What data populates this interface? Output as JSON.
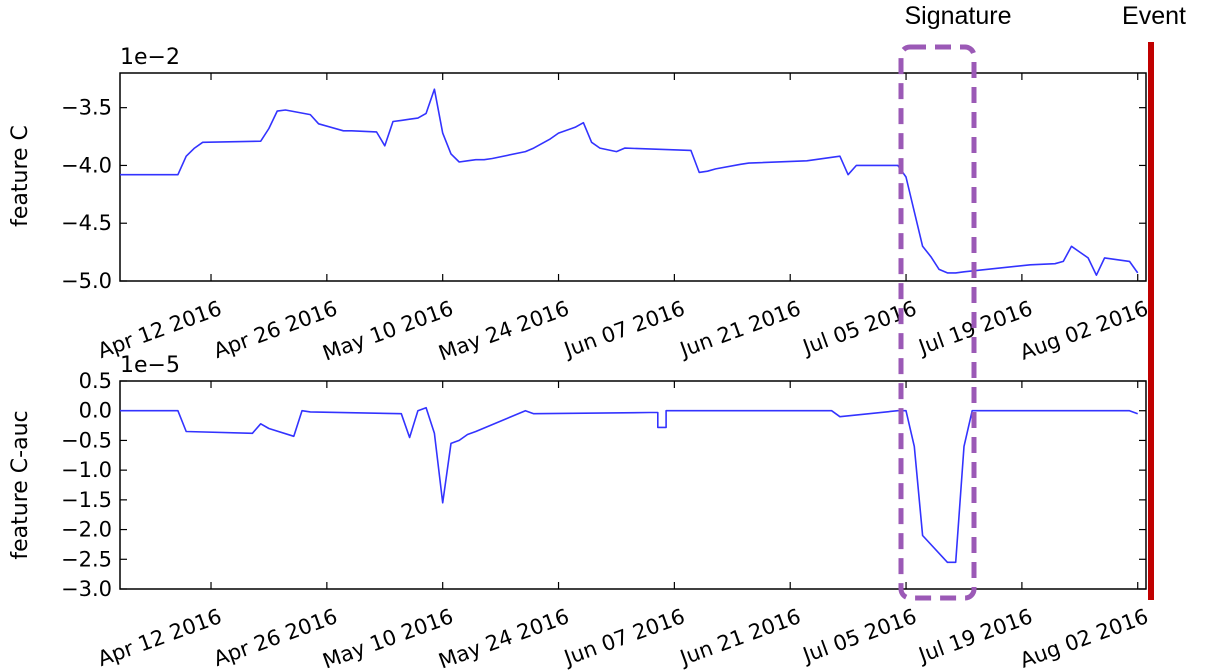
{
  "chart_data": [
    {
      "type": "line",
      "ylabel": "feature C",
      "offset_label": "1e−2",
      "x_ticks": [
        "Apr 12 2016",
        "Apr 26 2016",
        "May 10 2016",
        "May 24 2016",
        "Jun 07 2016",
        "Jun 21 2016",
        "Jul 05 2016",
        "Jul 19 2016",
        "Aug 02 2016"
      ],
      "x_range": [
        "2016-04-01",
        "2016-08-03"
      ],
      "ylim": [
        -5.0,
        -3.2
      ],
      "y_ticks": [
        -3.5,
        -4.0,
        -4.5,
        -5.0
      ],
      "y_tick_labels": [
        "−3.5",
        "−4.0",
        "−4.5",
        "−5.0"
      ],
      "line_color": "#3333ff",
      "series": [
        {
          "x": [
            "2016-04-01",
            "2016-04-08",
            "2016-04-09",
            "2016-04-10",
            "2016-04-11",
            "2016-04-18",
            "2016-04-19",
            "2016-04-20",
            "2016-04-21",
            "2016-04-24",
            "2016-04-25",
            "2016-04-28",
            "2016-04-29",
            "2016-05-02",
            "2016-05-03",
            "2016-05-04",
            "2016-05-05",
            "2016-05-06",
            "2016-05-07",
            "2016-05-08",
            "2016-05-09",
            "2016-05-10",
            "2016-05-11",
            "2016-05-12",
            "2016-05-13",
            "2016-05-14",
            "2016-05-15",
            "2016-05-16",
            "2016-05-20",
            "2016-05-21",
            "2016-05-23",
            "2016-05-24",
            "2016-05-26",
            "2016-05-27",
            "2016-05-28",
            "2016-05-29",
            "2016-05-31",
            "2016-06-01",
            "2016-06-09",
            "2016-06-10",
            "2016-06-11",
            "2016-06-12",
            "2016-06-15",
            "2016-06-16",
            "2016-06-23",
            "2016-06-27",
            "2016-06-28",
            "2016-06-29",
            "2016-07-04",
            "2016-07-05",
            "2016-07-06",
            "2016-07-07",
            "2016-07-08",
            "2016-07-09",
            "2016-07-10",
            "2016-07-11",
            "2016-07-12",
            "2016-07-20",
            "2016-07-23",
            "2016-07-24",
            "2016-07-25",
            "2016-07-26",
            "2016-07-27",
            "2016-07-28",
            "2016-07-29",
            "2016-08-01",
            "2016-08-02"
          ],
          "values": [
            -4.08,
            -4.08,
            -3.92,
            -3.85,
            -3.8,
            -3.79,
            -3.68,
            -3.53,
            -3.52,
            -3.56,
            -3.64,
            -3.7,
            -3.7,
            -3.71,
            -3.83,
            -3.62,
            -3.61,
            -3.6,
            -3.59,
            -3.55,
            -3.34,
            -3.72,
            -3.9,
            -3.97,
            -3.96,
            -3.95,
            -3.95,
            -3.94,
            -3.88,
            -3.85,
            -3.77,
            -3.72,
            -3.67,
            -3.63,
            -3.8,
            -3.85,
            -3.88,
            -3.85,
            -3.87,
            -4.06,
            -4.05,
            -4.03,
            -3.99,
            -3.98,
            -3.96,
            -3.92,
            -4.08,
            -4.0,
            -4.0,
            -4.1,
            -4.4,
            -4.7,
            -4.79,
            -4.9,
            -4.93,
            -4.93,
            -4.92,
            -4.86,
            -4.85,
            -4.83,
            -4.7,
            -4.75,
            -4.8,
            -4.95,
            -4.8,
            -4.83,
            -4.93
          ]
        }
      ]
    },
    {
      "type": "line",
      "ylabel": "feature C-auc",
      "offset_label": "1e−5",
      "x_ticks": [
        "Apr 12 2016",
        "Apr 26 2016",
        "May 10 2016",
        "May 24 2016",
        "Jun 07 2016",
        "Jun 21 2016",
        "Jul 05 2016",
        "Jul 19 2016",
        "Aug 02 2016"
      ],
      "x_range": [
        "2016-04-01",
        "2016-08-03"
      ],
      "ylim": [
        -3.0,
        0.5
      ],
      "y_ticks": [
        0.5,
        0.0,
        -0.5,
        -1.0,
        -1.5,
        -2.0,
        -2.5,
        -3.0
      ],
      "y_tick_labels": [
        "0.5",
        "0.0",
        "−0.5",
        "−1.0",
        "−1.5",
        "−2.0",
        "−2.5",
        "−3.0"
      ],
      "line_color": "#3333ff",
      "series": [
        {
          "x": [
            "2016-04-01",
            "2016-04-08",
            "2016-04-09",
            "2016-04-17",
            "2016-04-18",
            "2016-04-19",
            "2016-04-22",
            "2016-04-23",
            "2016-04-24",
            "2016-05-05",
            "2016-05-06",
            "2016-05-07",
            "2016-05-08",
            "2016-05-09",
            "2016-05-10",
            "2016-05-11",
            "2016-05-12",
            "2016-05-13",
            "2016-05-14",
            "2016-05-20",
            "2016-05-21",
            "2016-06-04",
            "2016-06-05",
            "2016-06-05",
            "2016-06-06",
            "2016-06-06",
            "2016-06-26",
            "2016-06-27",
            "2016-07-04",
            "2016-07-05",
            "2016-07-06",
            "2016-07-07",
            "2016-07-10",
            "2016-07-11",
            "2016-07-12",
            "2016-07-13",
            "2016-07-14",
            "2016-08-01",
            "2016-08-02"
          ],
          "values": [
            0.0,
            0.0,
            -0.35,
            -0.38,
            -0.22,
            -0.3,
            -0.43,
            0.0,
            -0.02,
            -0.05,
            -0.45,
            0.0,
            0.05,
            -0.38,
            -1.55,
            -0.55,
            -0.5,
            -0.4,
            -0.35,
            0.0,
            -0.05,
            -0.03,
            -0.03,
            -0.28,
            -0.28,
            0.0,
            0.0,
            -0.1,
            0.0,
            0.0,
            -0.6,
            -2.1,
            -2.55,
            -2.55,
            -0.6,
            0.0,
            0.0,
            0.0,
            -0.05
          ]
        }
      ]
    }
  ],
  "annotations": {
    "signature_label": "Signature",
    "event_label": "Event",
    "signature_color": "#9b59b6",
    "event_color": "#c00000"
  }
}
